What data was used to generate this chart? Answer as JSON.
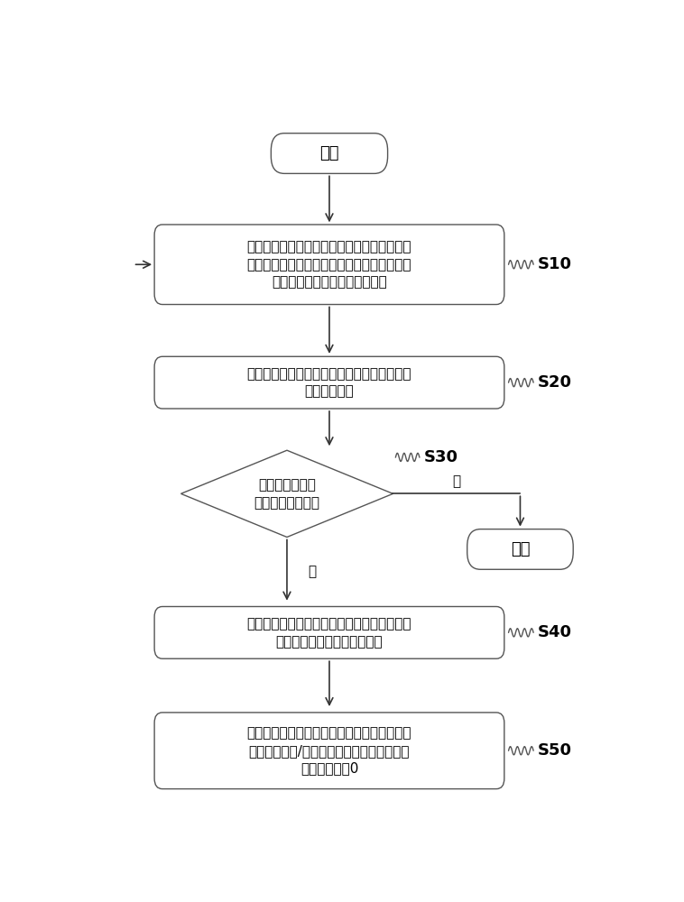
{
  "bg_color": "#ffffff",
  "border_color": "#555555",
  "arrow_color": "#333333",
  "text_color": "#000000",
  "start_text": "开始",
  "end_text": "结束",
  "s10_text": "驱动推钞板沿第一方向朝向成对设置的第一分\n钞轮和第二分钞轮移动，以将纸币朝向所述第\n一分钞轮和所述第二分钞轮顶压",
  "s20_text": "获取所述第一分钞轮和所述第二分钞轮感应到\n纸币的时间差",
  "s30_text": "判断所述时间差\n是否为超出阈值？",
  "s40_text": "基于所述时间差计算所述第一分钞轮和所述第\n二分钞轮在第一方向上的间距",
  "s50_text": "根据所述间距的大小，在第一方向上调整所述\n第一分钞轮和/或所述第二分钞轮的位置以使\n所述间距趋于0",
  "yes_text": "是",
  "no_text": "否",
  "label_s10": "S10",
  "label_s20": "S20",
  "label_s30": "S30",
  "label_s40": "S40",
  "label_s50": "S50"
}
